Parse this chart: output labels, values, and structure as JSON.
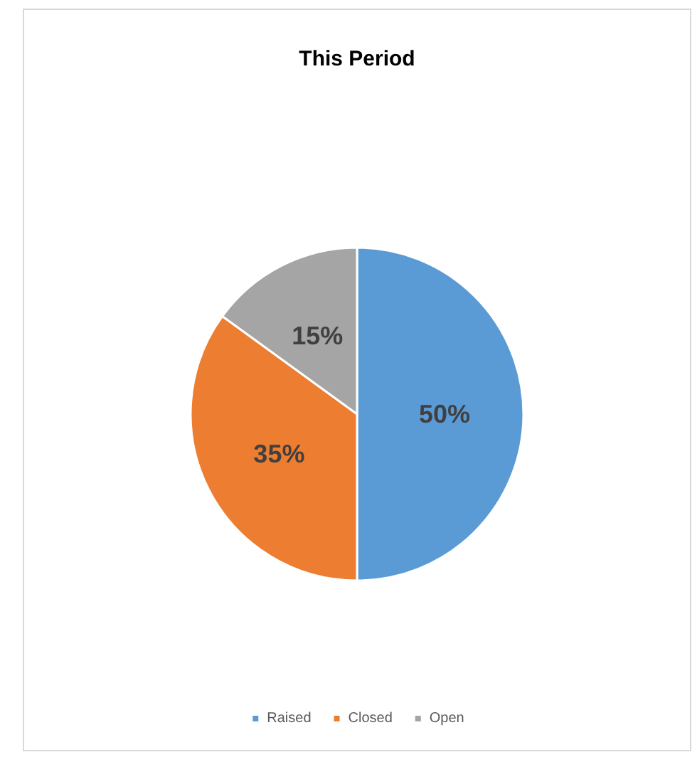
{
  "chart_data": {
    "type": "pie",
    "title": "This Period",
    "categories": [
      "Raised",
      "Closed",
      "Open"
    ],
    "values": [
      50,
      35,
      15
    ],
    "value_labels": [
      "50%",
      "35%",
      "15%"
    ],
    "colors": [
      "#5b9bd5",
      "#ed7d31",
      "#a5a5a5"
    ],
    "legend": "bottom"
  }
}
